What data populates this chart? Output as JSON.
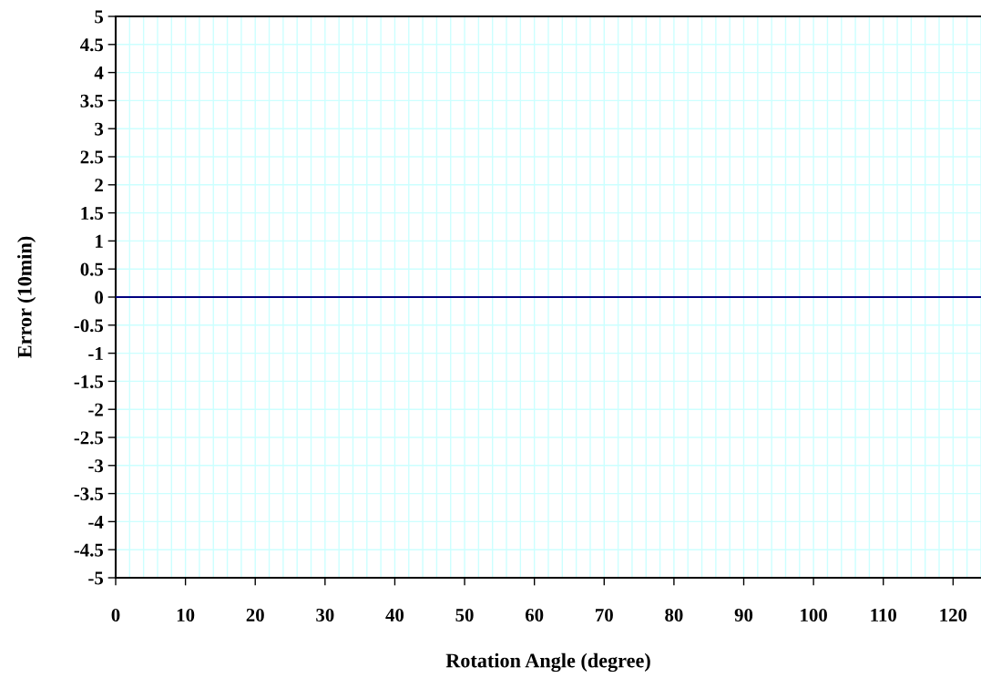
{
  "chart_data": {
    "type": "line",
    "xlabel": "Rotation Angle (degree)",
    "ylabel": "Error (10min)",
    "series": [
      {
        "color": "#000080",
        "x": [
          0,
          124
        ],
        "values": [
          0,
          0
        ]
      }
    ],
    "xlim": [
      0,
      124
    ],
    "xticks": [
      0,
      10,
      20,
      30,
      40,
      50,
      60,
      70,
      80,
      90,
      100,
      110,
      120
    ],
    "ylim": [
      -5,
      5
    ],
    "yticks": [
      -5,
      -4.5,
      -4,
      -3.5,
      -3,
      -2.5,
      -2,
      -1.5,
      -1,
      -0.5,
      0,
      0.5,
      1,
      1.5,
      2,
      2.5,
      3,
      3.5,
      4,
      4.5,
      5
    ],
    "grid": true,
    "marker": "none",
    "line_style": "solid"
  }
}
